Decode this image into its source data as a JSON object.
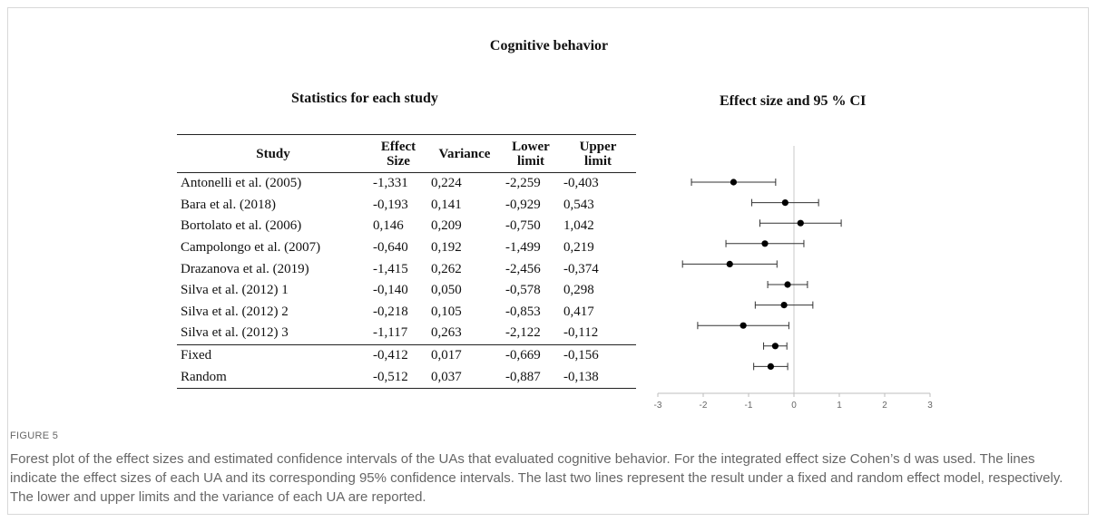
{
  "figure": {
    "title": "Cognitive behavior",
    "left_title": "Statistics for each study",
    "right_title": "Effect size and 95 % CI",
    "label": "FIGURE 5",
    "caption": "Forest plot of the effect sizes and estimated confidence intervals of the UAs that evaluated cognitive behavior. For the integrated effect size Cohen’s d was used. The lines indicate the effect sizes of each UA and its corresponding 95% confidence intervals. The last two lines represent the result under a fixed and random effect model, respectively. The lower and upper limits and the variance of each UA are reported."
  },
  "table": {
    "headers": {
      "study": "Study",
      "effect_a": "Effect",
      "effect_b": "Size",
      "variance": "Variance",
      "lower_a": "Lower",
      "lower_b": "limit",
      "upper_a": "Upper",
      "upper_b": "limit"
    },
    "rows": [
      {
        "study": "Antonelli et al. (2005)",
        "effect": "-1,331",
        "variance": "0,224",
        "lower": "-2,259",
        "upper": "-0,403"
      },
      {
        "study": "Bara et al. (2018)",
        "effect": "-0,193",
        "variance": "0,141",
        "lower": "-0,929",
        "upper": "0,543"
      },
      {
        "study": "Bortolato et al. (2006)",
        "effect": "0,146",
        "variance": "0,209",
        "lower": "-0,750",
        "upper": "1,042"
      },
      {
        "study": "Campolongo et al. (2007)",
        "effect": "-0,640",
        "variance": "0,192",
        "lower": "-1,499",
        "upper": "0,219"
      },
      {
        "study": "Drazanova et al. (2019)",
        "effect": "-1,415",
        "variance": "0,262",
        "lower": "-2,456",
        "upper": "-0,374"
      },
      {
        "study": "Silva et al. (2012) 1",
        "effect": "-0,140",
        "variance": "0,050",
        "lower": "-0,578",
        "upper": "0,298"
      },
      {
        "study": "Silva et al. (2012) 2",
        "effect": "-0,218",
        "variance": "0,105",
        "lower": "-0,853",
        "upper": "0,417"
      },
      {
        "study": "Silva et al. (2012) 3",
        "effect": "-1,117",
        "variance": "0,263",
        "lower": "-2,122",
        "upper": "-0,112"
      },
      {
        "study": "Fixed",
        "effect": "-0,412",
        "variance": "0,017",
        "lower": "-0,669",
        "upper": "-0,156"
      },
      {
        "study": "Random",
        "effect": "-0,512",
        "variance": "0,037",
        "lower": "-0,887",
        "upper": "-0,138"
      }
    ]
  },
  "chart_data": {
    "type": "scatter",
    "title": "Effect size and 95 % CI",
    "xlabel": "",
    "ylabel": "",
    "xlim": [
      -3,
      3
    ],
    "x_ticks": [
      -3,
      -2,
      -1,
      0,
      1,
      2,
      3
    ],
    "reference_line": 0,
    "grid": false,
    "points": [
      {
        "effect": -1.331,
        "lower": -2.259,
        "upper": -0.403
      },
      {
        "effect": -0.193,
        "lower": -0.929,
        "upper": 0.543
      },
      {
        "effect": 0.146,
        "lower": -0.75,
        "upper": 1.042
      },
      {
        "effect": -0.64,
        "lower": -1.499,
        "upper": 0.219
      },
      {
        "effect": -1.415,
        "lower": -2.456,
        "upper": -0.374
      },
      {
        "effect": -0.14,
        "lower": -0.578,
        "upper": 0.298
      },
      {
        "effect": -0.218,
        "lower": -0.853,
        "upper": 0.417
      },
      {
        "effect": -1.117,
        "lower": -2.122,
        "upper": -0.112
      },
      {
        "effect": -0.412,
        "lower": -0.669,
        "upper": -0.156
      },
      {
        "effect": -0.512,
        "lower": -0.887,
        "upper": -0.138
      }
    ]
  }
}
